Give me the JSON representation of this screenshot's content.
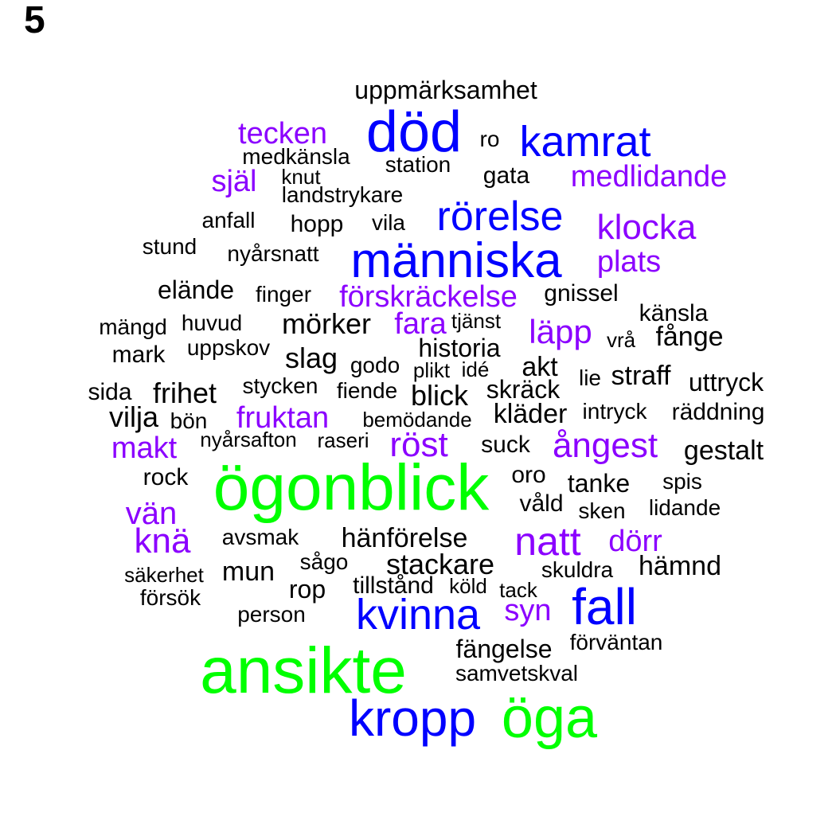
{
  "panel_label": "5",
  "colors": {
    "large": "#00ff00",
    "medium": "#0000ff",
    "small": "#8b00ff",
    "tiny": "#000000"
  },
  "words": [
    {
      "text": "uppmärksamhet",
      "tier": "tiny"
    },
    {
      "text": "död",
      "tier": "medium"
    },
    {
      "text": "tecken",
      "tier": "small"
    },
    {
      "text": "ro",
      "tier": "tiny"
    },
    {
      "text": "kamrat",
      "tier": "medium"
    },
    {
      "text": "medkänsla",
      "tier": "tiny"
    },
    {
      "text": "station",
      "tier": "tiny"
    },
    {
      "text": "själ",
      "tier": "small"
    },
    {
      "text": "knut",
      "tier": "tiny"
    },
    {
      "text": "gata",
      "tier": "tiny"
    },
    {
      "text": "medlidande",
      "tier": "small"
    },
    {
      "text": "landstrykare",
      "tier": "tiny"
    },
    {
      "text": "rörelse",
      "tier": "medium"
    },
    {
      "text": "anfall",
      "tier": "tiny"
    },
    {
      "text": "hopp",
      "tier": "tiny"
    },
    {
      "text": "vila",
      "tier": "tiny"
    },
    {
      "text": "klocka",
      "tier": "small"
    },
    {
      "text": "stund",
      "tier": "tiny"
    },
    {
      "text": "nyårsnatt",
      "tier": "tiny"
    },
    {
      "text": "människa",
      "tier": "medium"
    },
    {
      "text": "plats",
      "tier": "small"
    },
    {
      "text": "elände",
      "tier": "tiny"
    },
    {
      "text": "finger",
      "tier": "tiny"
    },
    {
      "text": "förskräckelse",
      "tier": "small"
    },
    {
      "text": "gnissel",
      "tier": "tiny"
    },
    {
      "text": "känsla",
      "tier": "tiny"
    },
    {
      "text": "mängd",
      "tier": "tiny"
    },
    {
      "text": "huvud",
      "tier": "tiny"
    },
    {
      "text": "mörker",
      "tier": "tiny"
    },
    {
      "text": "fara",
      "tier": "small"
    },
    {
      "text": "tjänst",
      "tier": "tiny"
    },
    {
      "text": "läpp",
      "tier": "small"
    },
    {
      "text": "vrå",
      "tier": "tiny"
    },
    {
      "text": "fånge",
      "tier": "tiny"
    },
    {
      "text": "mark",
      "tier": "tiny"
    },
    {
      "text": "uppskov",
      "tier": "tiny"
    },
    {
      "text": "slag",
      "tier": "tiny"
    },
    {
      "text": "historia",
      "tier": "tiny"
    },
    {
      "text": "godo",
      "tier": "tiny"
    },
    {
      "text": "plikt",
      "tier": "tiny"
    },
    {
      "text": "idé",
      "tier": "tiny"
    },
    {
      "text": "akt",
      "tier": "tiny"
    },
    {
      "text": "lie",
      "tier": "tiny"
    },
    {
      "text": "straff",
      "tier": "tiny"
    },
    {
      "text": "uttryck",
      "tier": "tiny"
    },
    {
      "text": "sida",
      "tier": "tiny"
    },
    {
      "text": "frihet",
      "tier": "tiny"
    },
    {
      "text": "stycken",
      "tier": "tiny"
    },
    {
      "text": "fiende",
      "tier": "tiny"
    },
    {
      "text": "blick",
      "tier": "tiny"
    },
    {
      "text": "skräck",
      "tier": "tiny"
    },
    {
      "text": "vilja",
      "tier": "tiny"
    },
    {
      "text": "bön",
      "tier": "tiny"
    },
    {
      "text": "fruktan",
      "tier": "small"
    },
    {
      "text": "bemödande",
      "tier": "tiny"
    },
    {
      "text": "kläder",
      "tier": "tiny"
    },
    {
      "text": "intryck",
      "tier": "tiny"
    },
    {
      "text": "räddning",
      "tier": "tiny"
    },
    {
      "text": "makt",
      "tier": "small"
    },
    {
      "text": "nyårsafton",
      "tier": "tiny"
    },
    {
      "text": "raseri",
      "tier": "tiny"
    },
    {
      "text": "röst",
      "tier": "small"
    },
    {
      "text": "suck",
      "tier": "tiny"
    },
    {
      "text": "ångest",
      "tier": "small"
    },
    {
      "text": "gestalt",
      "tier": "tiny"
    },
    {
      "text": "ögonblick",
      "tier": "large"
    },
    {
      "text": "rock",
      "tier": "tiny"
    },
    {
      "text": "oro",
      "tier": "tiny"
    },
    {
      "text": "tanke",
      "tier": "tiny"
    },
    {
      "text": "spis",
      "tier": "tiny"
    },
    {
      "text": "vän",
      "tier": "small"
    },
    {
      "text": "våld",
      "tier": "tiny"
    },
    {
      "text": "sken",
      "tier": "tiny"
    },
    {
      "text": "lidande",
      "tier": "tiny"
    },
    {
      "text": "knä",
      "tier": "small"
    },
    {
      "text": "avsmak",
      "tier": "tiny"
    },
    {
      "text": "hänförelse",
      "tier": "tiny"
    },
    {
      "text": "natt",
      "tier": "small"
    },
    {
      "text": "dörr",
      "tier": "small"
    },
    {
      "text": "sågo",
      "tier": "tiny"
    },
    {
      "text": "stackare",
      "tier": "tiny"
    },
    {
      "text": "skuldra",
      "tier": "tiny"
    },
    {
      "text": "hämnd",
      "tier": "tiny"
    },
    {
      "text": "säkerhet",
      "tier": "tiny"
    },
    {
      "text": "mun",
      "tier": "tiny"
    },
    {
      "text": "rop",
      "tier": "tiny"
    },
    {
      "text": "tillstånd",
      "tier": "tiny"
    },
    {
      "text": "köld",
      "tier": "tiny"
    },
    {
      "text": "tack",
      "tier": "tiny"
    },
    {
      "text": "försök",
      "tier": "tiny"
    },
    {
      "text": "fall",
      "tier": "medium"
    },
    {
      "text": "kvinna",
      "tier": "medium"
    },
    {
      "text": "syn",
      "tier": "small"
    },
    {
      "text": "person",
      "tier": "tiny"
    },
    {
      "text": "fängelse",
      "tier": "tiny"
    },
    {
      "text": "förväntan",
      "tier": "tiny"
    },
    {
      "text": "ansikte",
      "tier": "large"
    },
    {
      "text": "samvetskval",
      "tier": "tiny"
    },
    {
      "text": "kropp",
      "tier": "medium"
    },
    {
      "text": "öga",
      "tier": "large"
    }
  ]
}
